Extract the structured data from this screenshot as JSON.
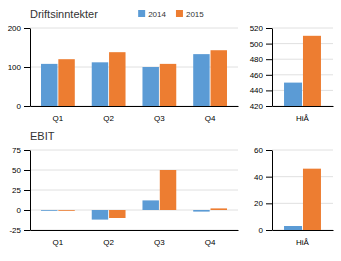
{
  "chart_data": [
    {
      "type": "bar",
      "title": "Driftsinntekter",
      "categories": [
        "Q1",
        "Q2",
        "Q3",
        "Q4"
      ],
      "series": [
        {
          "name": "2014",
          "color": "#5b9bd5",
          "values": [
            108,
            112,
            100,
            133
          ]
        },
        {
          "name": "2015",
          "color": "#ed7d31",
          "values": [
            120,
            138,
            108,
            143
          ]
        }
      ],
      "ylim": [
        0,
        200
      ],
      "yticks": [
        0,
        100,
        200
      ],
      "grid": true,
      "legend": "top"
    },
    {
      "type": "bar",
      "title": "EBIT",
      "categories": [
        "Q1",
        "Q2",
        "Q3",
        "Q4"
      ],
      "series": [
        {
          "color": "#5b9bd5",
          "values": [
            -1,
            -12,
            12,
            -2
          ]
        },
        {
          "color": "#ed7d31",
          "values": [
            -1,
            -10,
            50,
            2
          ]
        }
      ],
      "ylim": [
        -25,
        75
      ],
      "yticks": [
        -25,
        0,
        25,
        50,
        75
      ],
      "grid": true
    },
    {
      "type": "bar",
      "categories": [
        "HiÅ"
      ],
      "series": [
        {
          "color": "#5b9bd5",
          "values": [
            450
          ]
        },
        {
          "color": "#ed7d31",
          "values": [
            510
          ]
        }
      ],
      "ylim": [
        420,
        520
      ],
      "yticks": [
        420,
        440,
        460,
        480,
        500,
        520
      ],
      "grid": true
    },
    {
      "type": "bar",
      "categories": [
        "HiÅ"
      ],
      "series": [
        {
          "color": "#5b9bd5",
          "values": [
            3
          ]
        },
        {
          "color": "#ed7d31",
          "values": [
            46
          ]
        }
      ],
      "ylim": [
        0,
        60
      ],
      "yticks": [
        0,
        20,
        40,
        60
      ],
      "grid": true
    }
  ]
}
